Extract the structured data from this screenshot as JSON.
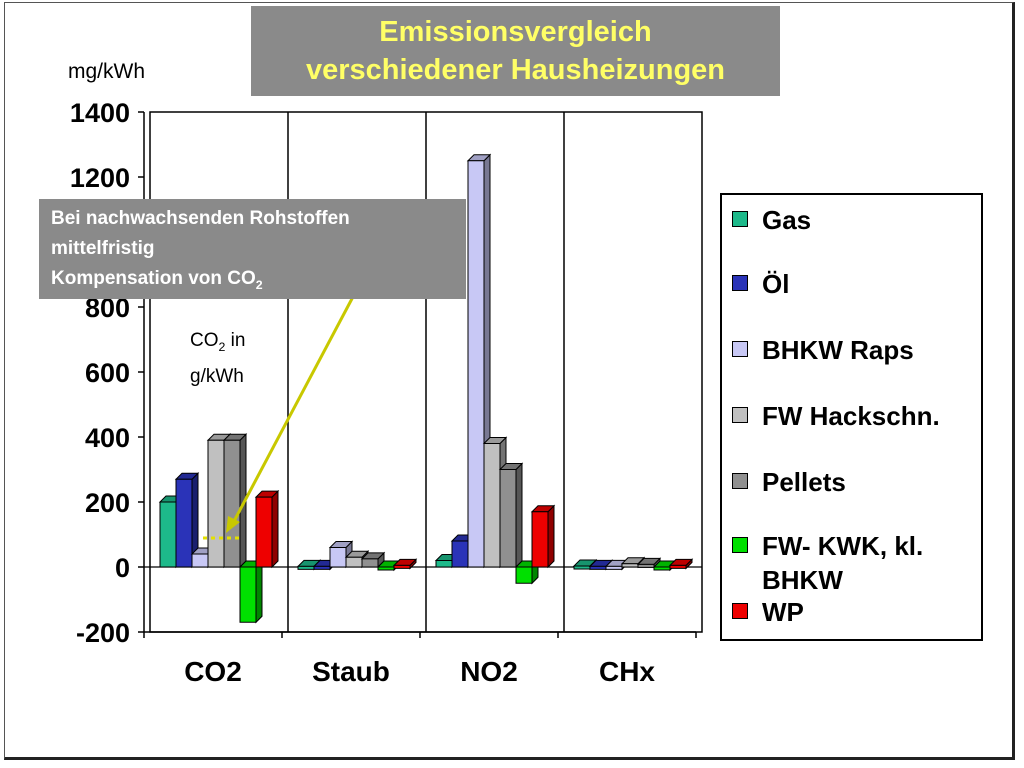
{
  "title": {
    "line1": "Emissionsvergleich",
    "line2": "verschiedener Hausheizungen"
  },
  "unit_label": "mg/kWh",
  "note": {
    "line1": "Bei nachwachsenden Rohstoffen",
    "line2": "mittelfristig",
    "line3_text": "Kompensation von CO",
    "line3_sub": "2"
  },
  "co2_annotation": {
    "line1_text": "CO",
    "line1_sub": "2",
    "line1_tail": " in",
    "line2": "g/kWh"
  },
  "chart_data": {
    "type": "bar",
    "categories": [
      "CO2",
      "Staub",
      "NO2",
      "CHx"
    ],
    "ylim": [
      -200,
      1400
    ],
    "yticks": [
      -200,
      0,
      200,
      400,
      600,
      800,
      1000,
      1200,
      1400
    ],
    "ytick_labels": [
      "-200",
      "0",
      "200",
      "400",
      "600",
      "800",
      "",
      "1200",
      "1400"
    ],
    "ylabel": "mg/kWh",
    "grid": "vertical lines between categories",
    "legend_position": "right",
    "series": [
      {
        "name": "Gas",
        "color": "#1db98a",
        "values": [
          200,
          2,
          20,
          3
        ]
      },
      {
        "name": "Öl",
        "color": "#2a33b8",
        "values": [
          270,
          2,
          80,
          2
        ]
      },
      {
        "name": "BHKW Raps",
        "color": "#c8c8f5",
        "values": [
          40,
          60,
          1250,
          2
        ]
      },
      {
        "name": "FW Hackschn.",
        "color": "#c0c0c0",
        "values": [
          390,
          30,
          380,
          10
        ]
      },
      {
        "name": "Pellets",
        "color": "#909090",
        "values": [
          390,
          25,
          300,
          8
        ]
      },
      {
        "name": "FW- KWK, kl. BHKW",
        "color": "#00e000",
        "values": [
          -170,
          -5,
          -50,
          -5
        ]
      },
      {
        "name": "WP",
        "color": "#ee0000",
        "values": [
          215,
          5,
          170,
          5
        ]
      }
    ]
  }
}
